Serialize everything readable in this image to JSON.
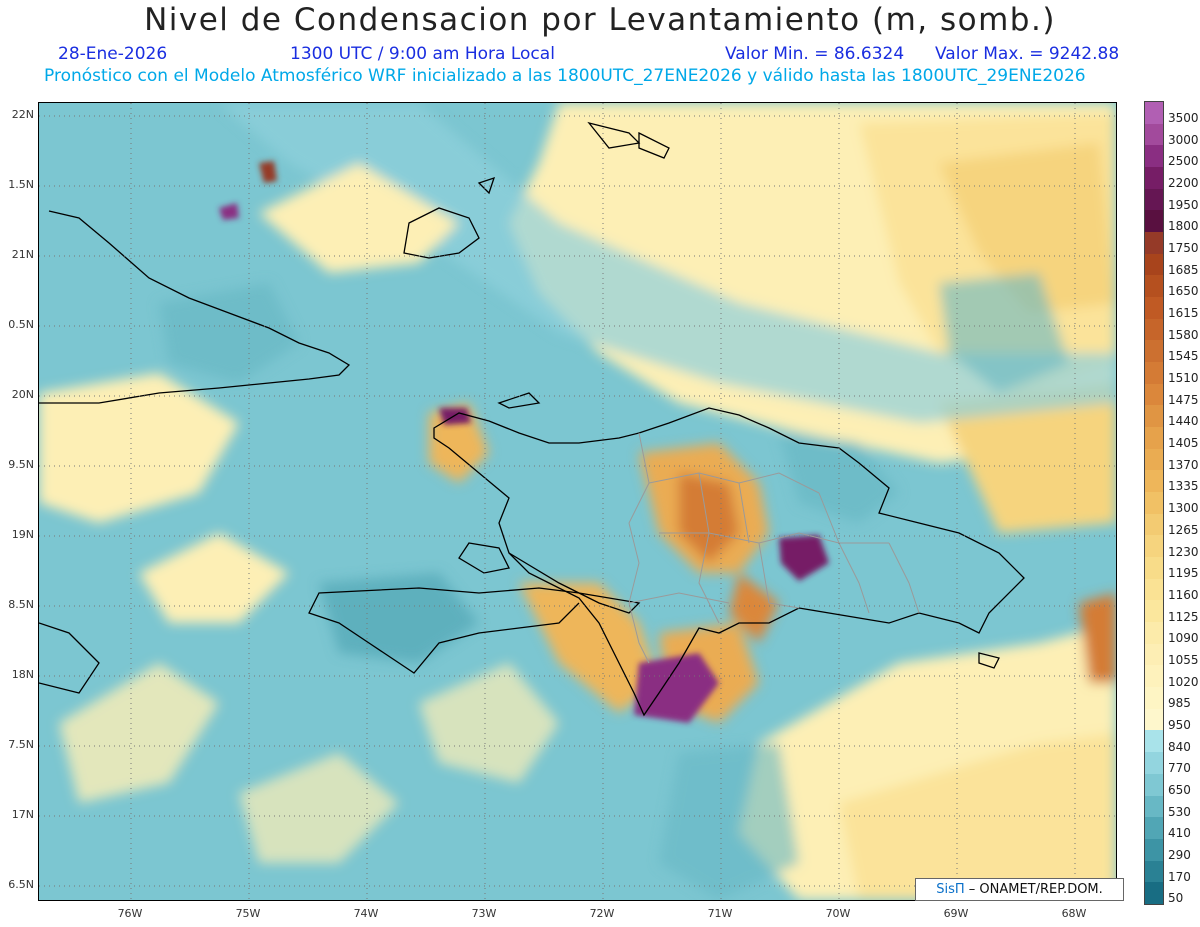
{
  "title": "Nivel de Condensacion por Levantamiento (m, somb.)",
  "date": "28-Ene-2026",
  "time": "1300 UTC / 9:00 am Hora Local",
  "valmin": "Valor Min. = 86.6324",
  "valmax": "Valor Max. = 9242.88",
  "forecast": "Pronóstico con el Modelo Atmosférico WRF inicializado a las 1800UTC_27ENE2026 y válido hasta las  1800UTC_29ENE2026",
  "lat_labels": [
    "22N",
    "1.5N",
    "21N",
    "0.5N",
    "20N",
    "9.5N",
    "19N",
    "8.5N",
    "18N",
    "7.5N",
    "17N",
    "6.5N"
  ],
  "lon_labels": [
    "76W",
    "75W",
    "74W",
    "73W",
    "72W",
    "71W",
    "70W",
    "69W",
    "68W"
  ],
  "colorbar_labels": [
    "3500",
    "3000",
    "2500",
    "2200",
    "1950",
    "1800",
    "1750",
    "1685",
    "1650",
    "1615",
    "1580",
    "1545",
    "1510",
    "1475",
    "1440",
    "1405",
    "1370",
    "1335",
    "1300",
    "1265",
    "1230",
    "1195",
    "1160",
    "1125",
    "1090",
    "1055",
    "1020",
    "985",
    "950",
    "840",
    "770",
    "650",
    "530",
    "410",
    "290",
    "170",
    "50"
  ],
  "colorbar_colors": [
    "#b15fb3",
    "#a24a9c",
    "#8a2e82",
    "#761d66",
    "#651653",
    "#591040",
    "#953a28",
    "#a8441c",
    "#b5501f",
    "#c05a24",
    "#c6652a",
    "#cc7030",
    "#d47b35",
    "#db873b",
    "#e09543",
    "#e6a24b",
    "#eaac52",
    "#eeb65a",
    "#f1c165",
    "#f3cb72",
    "#f6d47e",
    "#f8dc89",
    "#fae294",
    "#fbe79d",
    "#fcebaa",
    "#fdeeb4",
    "#fef2bc",
    "#fef5c4",
    "#fef7cc",
    "#a9e3ea",
    "#93d5df",
    "#7fc8d3",
    "#68b8c5",
    "#51a6b5",
    "#3d94a5",
    "#2a8194",
    "#186d83"
  ],
  "credit_sis": "SisΠ",
  "credit_org": "– ONAMET/REP.DOM."
}
